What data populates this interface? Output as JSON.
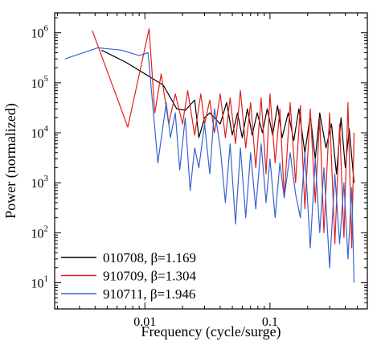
{
  "chart_data": {
    "type": "line",
    "title": "",
    "xlabel": "Frequency (cycle/surge)",
    "ylabel": "Power (normalized)",
    "x_scale": "log",
    "y_scale": "log",
    "xlim": [
      0.0019,
      0.6
    ],
    "ylim": [
      3,
      2500000
    ],
    "x_ticks": [
      {
        "value": 0.01,
        "label": "0.01"
      },
      {
        "value": 0.1,
        "label": "0.1"
      }
    ],
    "y_ticks": [
      {
        "value": 10,
        "base": "10",
        "exp": "1"
      },
      {
        "value": 100,
        "base": "10",
        "exp": "2"
      },
      {
        "value": 1000,
        "base": "10",
        "exp": "3"
      },
      {
        "value": 10000,
        "base": "10",
        "exp": "4"
      },
      {
        "value": 100000,
        "base": "10",
        "exp": "5"
      },
      {
        "value": 1000000,
        "base": "10",
        "exp": "6"
      }
    ],
    "legend_position": "bottom-left",
    "grid": false,
    "series": [
      {
        "name": "010708, β=1.169",
        "color": "#000000",
        "x": [
          0.0045,
          0.007,
          0.0105,
          0.014,
          0.018,
          0.021,
          0.025,
          0.027,
          0.03,
          0.033,
          0.036,
          0.04,
          0.045,
          0.05,
          0.055,
          0.06,
          0.066,
          0.072,
          0.079,
          0.087,
          0.095,
          0.105,
          0.115,
          0.125,
          0.14,
          0.155,
          0.17,
          0.19,
          0.21,
          0.23,
          0.25,
          0.28,
          0.31,
          0.34,
          0.37,
          0.4,
          0.43,
          0.47
        ],
        "y": [
          450000,
          260000,
          140000,
          90000,
          30000,
          28000,
          45000,
          8000,
          20000,
          25000,
          20000,
          15000,
          40000,
          9000,
          25000,
          8000,
          30000,
          9000,
          25000,
          10000,
          30000,
          9000,
          35000,
          8000,
          25000,
          7000,
          30000,
          4000,
          22000,
          3000,
          25000,
          5000,
          15000,
          1500,
          20000,
          2000,
          12000,
          1000
        ]
      },
      {
        "name": "910709, β=1.304",
        "color": "#e0201e",
        "x": [
          0.0038,
          0.0073,
          0.0108,
          0.012,
          0.0135,
          0.0155,
          0.0175,
          0.02,
          0.022,
          0.025,
          0.028,
          0.03,
          0.033,
          0.036,
          0.04,
          0.044,
          0.048,
          0.053,
          0.058,
          0.064,
          0.07,
          0.077,
          0.085,
          0.093,
          0.1,
          0.11,
          0.12,
          0.13,
          0.145,
          0.16,
          0.175,
          0.19,
          0.21,
          0.23,
          0.25,
          0.27,
          0.3,
          0.33,
          0.36,
          0.39,
          0.42,
          0.45,
          0.47
        ],
        "y": [
          1100000,
          13000,
          1200000,
          25000,
          150000,
          15000,
          60000,
          15000,
          70000,
          9000,
          60000,
          15000,
          45000,
          10000,
          60000,
          8000,
          50000,
          6000,
          70000,
          5000,
          40000,
          2000,
          50000,
          1500,
          60000,
          2500,
          30000,
          500,
          40000,
          1000,
          35000,
          300,
          30000,
          400,
          20000,
          100,
          25000,
          60,
          15000,
          80,
          40000,
          50,
          10000
        ]
      },
      {
        "name": "910711, β=1.946",
        "color": "#3a63d1",
        "x": [
          0.0023,
          0.0042,
          0.0065,
          0.009,
          0.0106,
          0.0127,
          0.0148,
          0.016,
          0.0175,
          0.019,
          0.021,
          0.023,
          0.025,
          0.027,
          0.03,
          0.033,
          0.036,
          0.04,
          0.044,
          0.048,
          0.053,
          0.058,
          0.064,
          0.07,
          0.077,
          0.085,
          0.093,
          0.1,
          0.11,
          0.12,
          0.13,
          0.145,
          0.16,
          0.175,
          0.19,
          0.21,
          0.23,
          0.25,
          0.27,
          0.3,
          0.33,
          0.36,
          0.39,
          0.42,
          0.45,
          0.47
        ],
        "y": [
          300000,
          500000,
          450000,
          350000,
          400000,
          2500,
          40000,
          8000,
          25000,
          1800,
          20000,
          700,
          5000,
          2000,
          15000,
          1500,
          30000,
          5000,
          400,
          6000,
          150,
          5000,
          200,
          4000,
          300,
          6000,
          400,
          3000,
          200,
          2500,
          500,
          4000,
          600,
          200,
          4000,
          50,
          3000,
          100,
          2000,
          20,
          1500,
          60,
          1000,
          30,
          800,
          10
        ]
      }
    ]
  }
}
